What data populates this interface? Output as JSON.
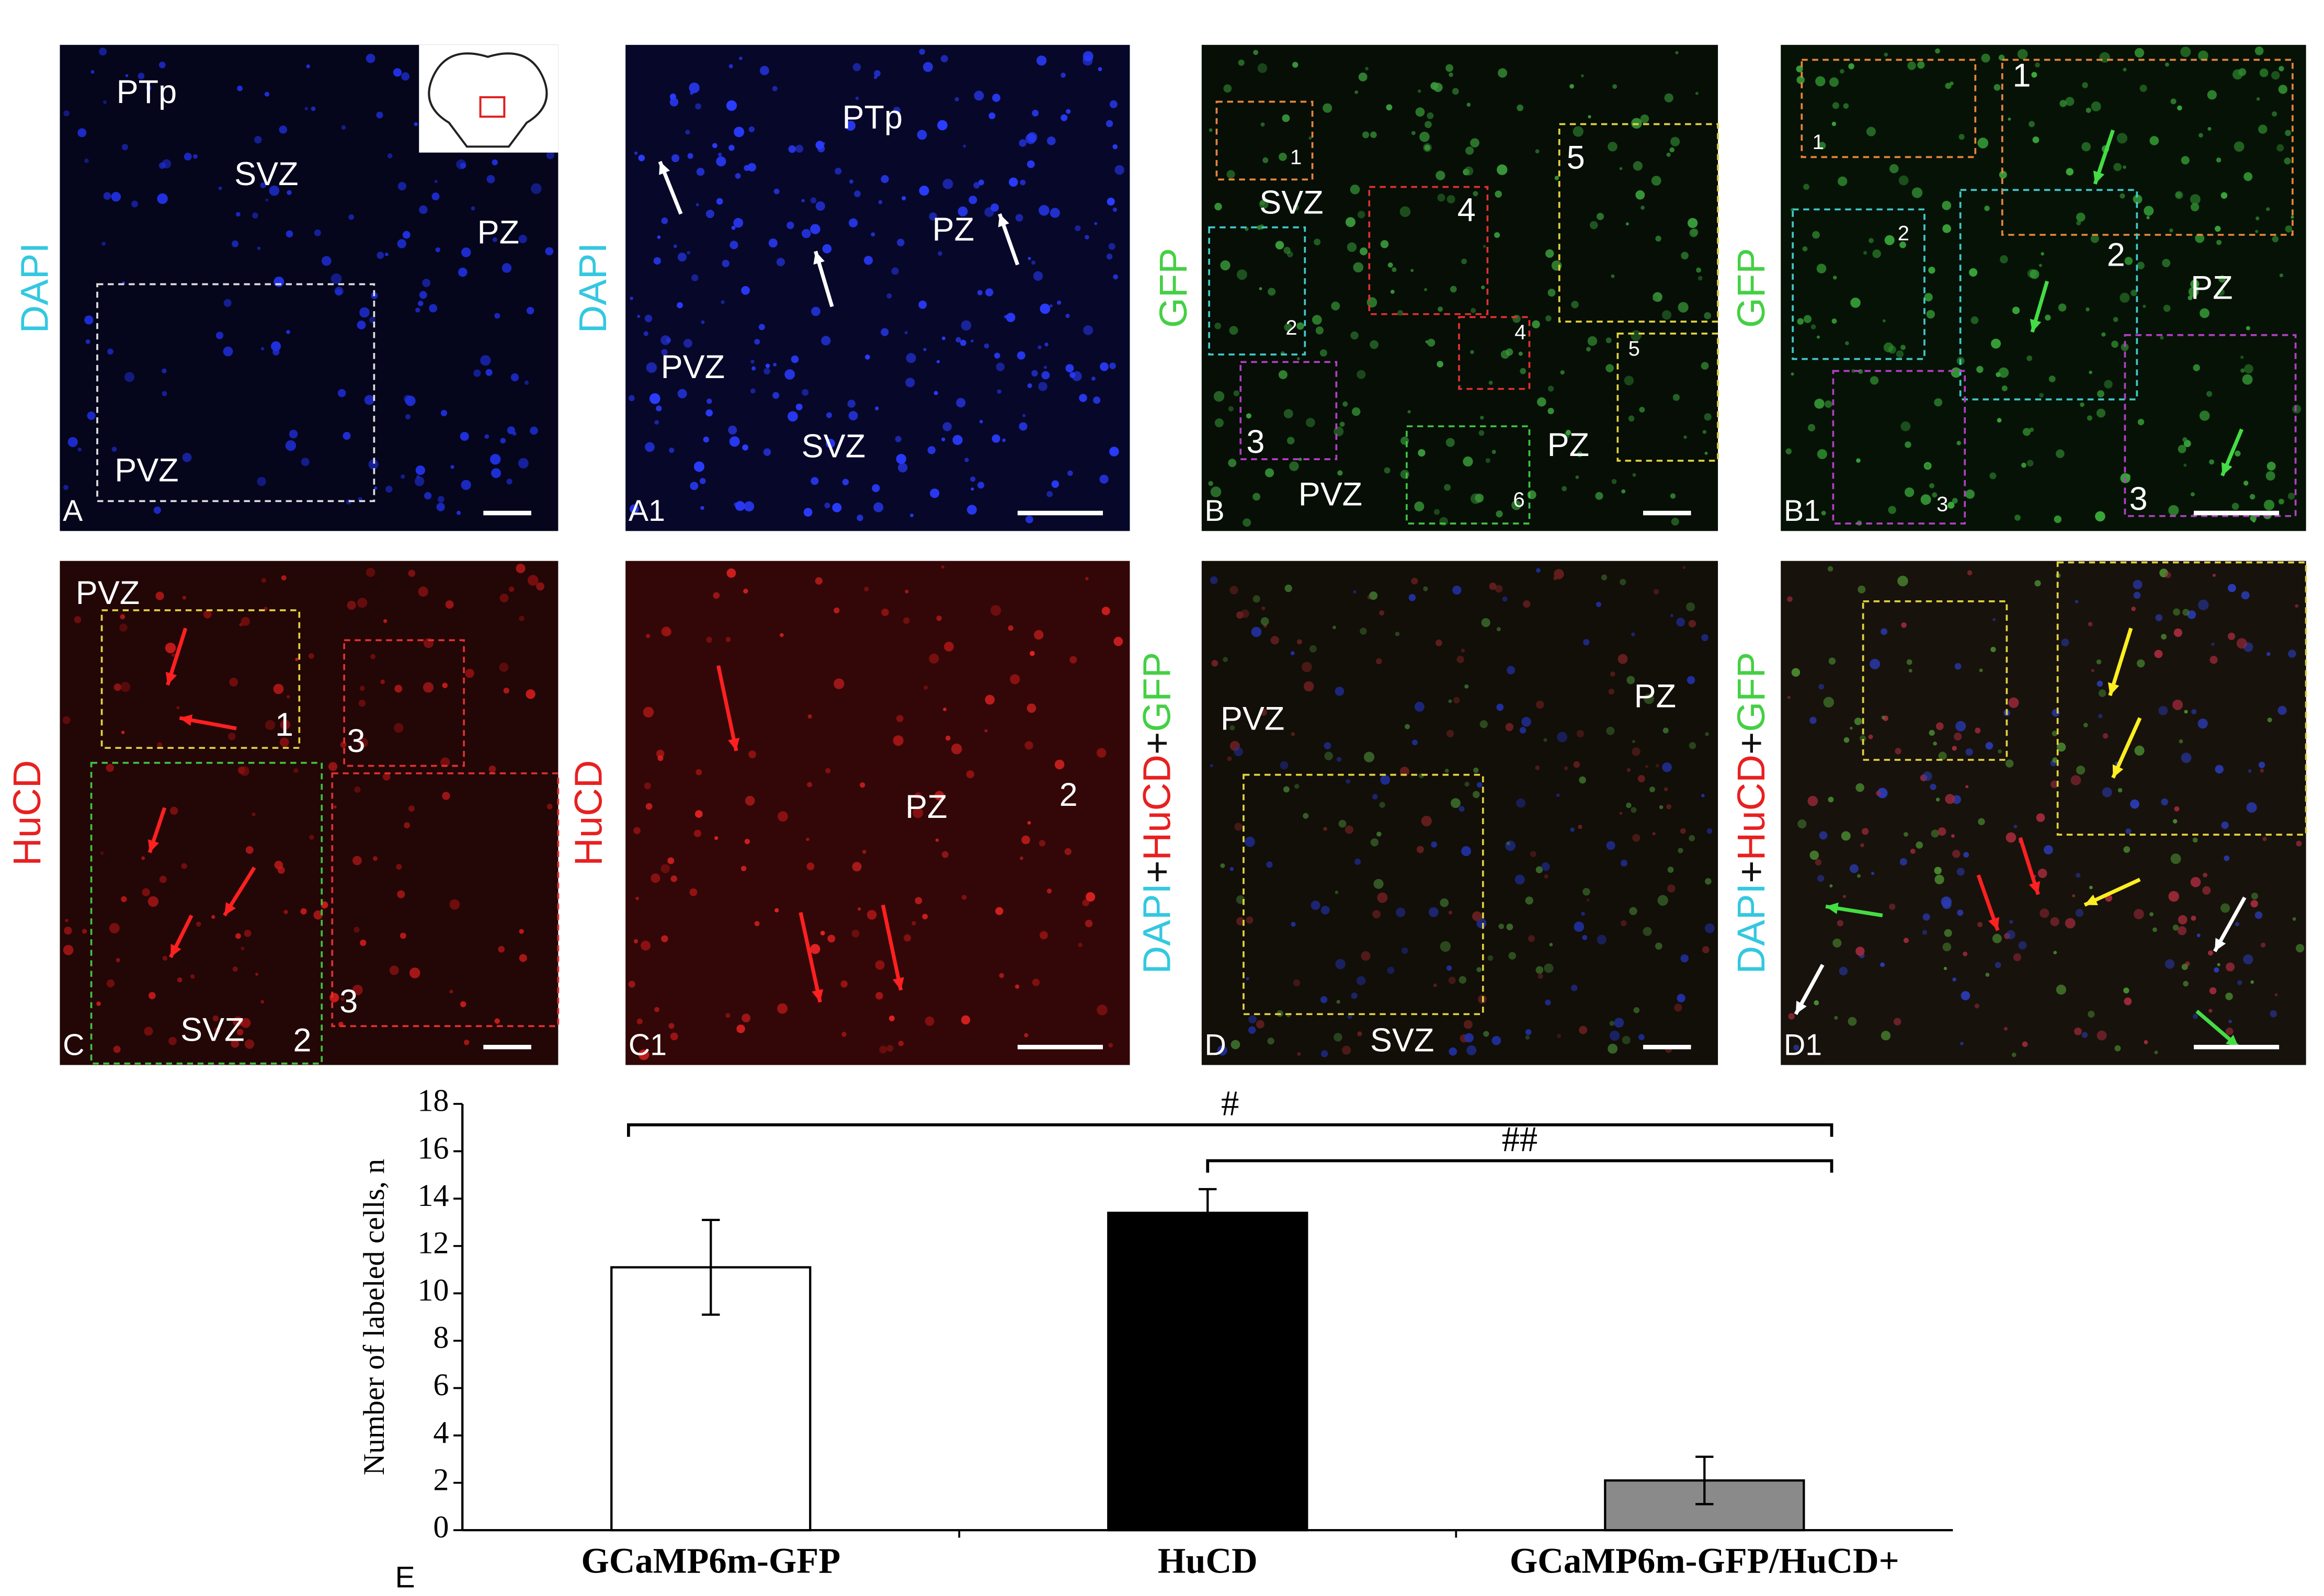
{
  "panels": [
    {
      "letter": "A",
      "channel": [
        {
          "text": "DAPI",
          "color": "#33c8e0"
        }
      ],
      "labels": [
        "PTp",
        "SVZ",
        "PZ",
        "PVZ"
      ]
    },
    {
      "letter": "A1",
      "channel": [
        {
          "text": "DAPI",
          "color": "#33c8e0"
        }
      ],
      "labels": [
        "PTp",
        "PZ",
        "PVZ",
        "SVZ"
      ]
    },
    {
      "letter": "B",
      "channel": [
        {
          "text": "GFP",
          "color": "#44d044"
        }
      ],
      "labels": [
        "SVZ",
        "PVZ",
        "PZ",
        "1",
        "2",
        "3",
        "4",
        "4",
        "5",
        "5",
        "6"
      ]
    },
    {
      "letter": "B1",
      "channel": [
        {
          "text": "GFP",
          "color": "#44d044"
        }
      ],
      "labels": [
        "1",
        "1",
        "2",
        "2",
        "PZ",
        "3",
        "3"
      ]
    },
    {
      "letter": "C",
      "channel": [
        {
          "text": "HuCD",
          "color": "#e82020"
        }
      ],
      "labels": [
        "PVZ",
        "1",
        "3",
        "SVZ",
        "2",
        "3"
      ]
    },
    {
      "letter": "C1",
      "channel": [
        {
          "text": "HuCD",
          "color": "#e82020"
        }
      ],
      "labels": [
        "PZ",
        "2"
      ]
    },
    {
      "letter": "D",
      "channel": [
        {
          "text": "DAPI",
          "color": "#33c8e0"
        },
        {
          "text": "+",
          "color": "#111111"
        },
        {
          "text": "HuCD",
          "color": "#e82020"
        },
        {
          "text": "+",
          "color": "#111111"
        },
        {
          "text": "GFP",
          "color": "#44d044"
        }
      ],
      "labels": [
        "PVZ",
        "PZ",
        "SVZ"
      ]
    },
    {
      "letter": "D1",
      "channel": [
        {
          "text": "DAPI",
          "color": "#33c8e0"
        },
        {
          "text": "+",
          "color": "#111111"
        },
        {
          "text": "HuCD",
          "color": "#e82020"
        },
        {
          "text": "+",
          "color": "#111111"
        },
        {
          "text": "GFP",
          "color": "#44d044"
        }
      ],
      "labels": []
    }
  ],
  "chart_data": {
    "type": "bar",
    "panel_letter": "E",
    "ylabel": "Number of labeled cells, n",
    "categories": [
      "GCaMP6m-GFP",
      "HuCD",
      "GCaMP6m-GFP/HuCD+"
    ],
    "values": [
      11.1,
      13.4,
      2.1
    ],
    "errors": [
      2.0,
      1.0,
      1.0
    ],
    "colors": [
      "#ffffff",
      "#000000",
      "#8a8a8a"
    ],
    "ylim": [
      0,
      18
    ],
    "yticks": [
      0,
      2,
      4,
      6,
      8,
      10,
      12,
      14,
      16,
      18
    ],
    "significance": [
      {
        "label": "#",
        "between": [
          "GCaMP6m-GFP",
          "GCaMP6m-GFP/HuCD+"
        ]
      },
      {
        "label": "##",
        "between": [
          "HuCD",
          "GCaMP6m-GFP/HuCD+"
        ]
      }
    ]
  }
}
